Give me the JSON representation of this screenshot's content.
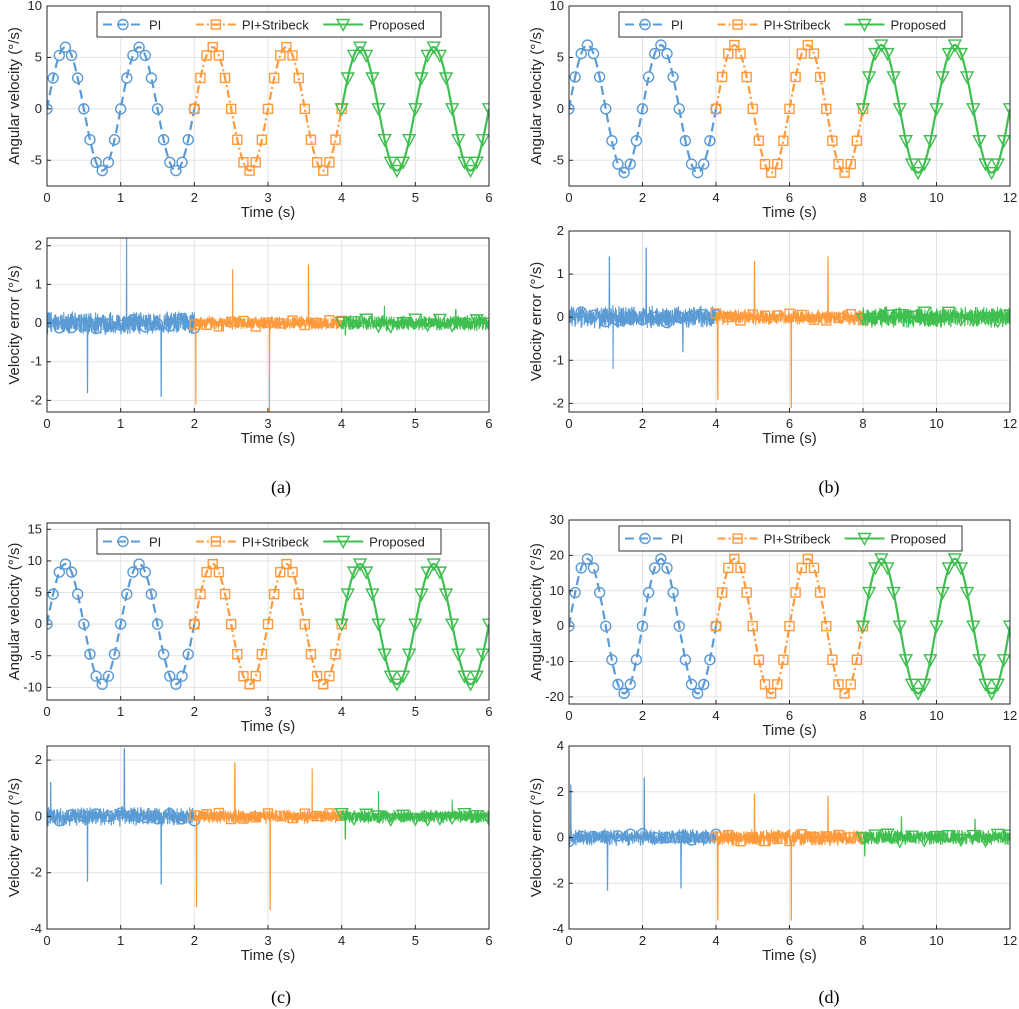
{
  "colors": {
    "pi": "#5b9bd5",
    "pi_stribeck": "#ff9a3c",
    "proposed": "#3fbf4f",
    "grid": "#e3e3e3",
    "axis": "#262626"
  },
  "legend": [
    "PI",
    "PI+Stribeck",
    "Proposed"
  ],
  "chart_data": [
    {
      "type": "line",
      "caption": "(a)",
      "speed": {
        "xlabel": "Time (s)",
        "ylabel": "Angular velocity (°/s)",
        "xlim": [
          0,
          6
        ],
        "ylim": [
          -7.5,
          10
        ],
        "xticks": [
          0,
          1,
          2,
          3,
          4,
          5,
          6
        ],
        "yticks": [
          -5,
          0,
          5,
          10
        ],
        "amplitude": 6,
        "period": 1
      },
      "error": {
        "xlabel": "Time (s)",
        "ylabel": "Velocity error (°/s)",
        "xlim": [
          0,
          6
        ],
        "ylim": [
          -2.3,
          2.2
        ],
        "xticks": [
          0,
          1,
          2,
          3,
          4,
          5,
          6
        ],
        "yticks": [
          -2,
          -1,
          0,
          1,
          2
        ],
        "noise": [
          0.25,
          0.15,
          0.17
        ],
        "spikes": [
          [
            0.55,
            -1.8
          ],
          [
            1.08,
            2.2
          ],
          [
            1.55,
            -1.9
          ],
          [
            2.02,
            -2.1
          ],
          [
            2.52,
            1.4
          ],
          [
            3.02,
            -2.3
          ],
          [
            3.55,
            1.5
          ],
          [
            4.05,
            -0.3
          ],
          [
            4.58,
            0.45
          ],
          [
            5.55,
            0.35
          ]
        ]
      },
      "series": [
        {
          "name": "PI",
          "t": [
            0,
            2
          ]
        },
        {
          "name": "PI+Stribeck",
          "t": [
            2,
            4
          ]
        },
        {
          "name": "Proposed",
          "t": [
            4,
            6
          ]
        }
      ]
    },
    {
      "type": "line",
      "caption": "(b)",
      "speed": {
        "xlabel": "Time (s)",
        "ylabel": "Angular velocity (°/s)",
        "xlim": [
          0,
          12
        ],
        "ylim": [
          -7.5,
          10
        ],
        "xticks": [
          0,
          2,
          4,
          6,
          8,
          10,
          12
        ],
        "yticks": [
          -5,
          0,
          5,
          10
        ],
        "amplitude": 6.2,
        "period": 2
      },
      "error": {
        "xlabel": "Time (s)",
        "ylabel": "Velocity error (°/s)",
        "xlim": [
          0,
          12
        ],
        "ylim": [
          -2.2,
          2
        ],
        "xticks": [
          0,
          2,
          4,
          6,
          8,
          10,
          12
        ],
        "yticks": [
          -2,
          -1,
          0,
          1,
          2
        ],
        "noise": [
          0.22,
          0.15,
          0.2
        ],
        "spikes": [
          [
            1.1,
            1.4
          ],
          [
            1.2,
            -1.2
          ],
          [
            2.1,
            1.6
          ],
          [
            3.1,
            -0.8
          ],
          [
            4.05,
            -1.9
          ],
          [
            5.05,
            1.3
          ],
          [
            6.05,
            -2.1
          ],
          [
            7.05,
            1.4
          ]
        ]
      },
      "series": [
        {
          "name": "PI",
          "t": [
            0,
            4
          ]
        },
        {
          "name": "PI+Stribeck",
          "t": [
            4,
            8
          ]
        },
        {
          "name": "Proposed",
          "t": [
            8,
            12
          ]
        }
      ]
    },
    {
      "type": "line",
      "caption": "(c)",
      "speed": {
        "xlabel": "Time (s)",
        "ylabel": "Angular velocity (°/s)",
        "xlim": [
          0,
          6
        ],
        "ylim": [
          -12,
          16
        ],
        "xticks": [
          0,
          1,
          2,
          3,
          4,
          5,
          6
        ],
        "yticks": [
          -10,
          -5,
          0,
          5,
          10,
          15
        ],
        "amplitude": 9.5,
        "period": 1
      },
      "error": {
        "xlabel": "Time (s)",
        "ylabel": "Velocity error (°/s)",
        "xlim": [
          0,
          6
        ],
        "ylim": [
          -4,
          2.5
        ],
        "xticks": [
          0,
          1,
          2,
          3,
          4,
          5,
          6
        ],
        "yticks": [
          -4,
          -2,
          0,
          2
        ],
        "noise": [
          0.28,
          0.2,
          0.2
        ],
        "spikes": [
          [
            0.05,
            1.2
          ],
          [
            0.55,
            -2.3
          ],
          [
            1.05,
            2.4
          ],
          [
            1.55,
            -2.4
          ],
          [
            2.03,
            -3.2
          ],
          [
            2.55,
            1.9
          ],
          [
            3.03,
            -3.3
          ],
          [
            3.6,
            1.7
          ],
          [
            4.05,
            -0.8
          ],
          [
            4.5,
            0.9
          ],
          [
            5.5,
            0.6
          ]
        ]
      },
      "series": [
        {
          "name": "PI",
          "t": [
            0,
            2
          ]
        },
        {
          "name": "PI+Stribeck",
          "t": [
            2,
            4
          ]
        },
        {
          "name": "Proposed",
          "t": [
            4,
            6
          ]
        }
      ]
    },
    {
      "type": "line",
      "caption": "(d)",
      "speed": {
        "xlabel": "Time (s)",
        "ylabel": "Angular velocity (°/s)",
        "xlim": [
          0,
          12
        ],
        "ylim": [
          -22,
          30
        ],
        "xticks": [
          0,
          2,
          4,
          6,
          8,
          10,
          12
        ],
        "yticks": [
          -20,
          -10,
          0,
          10,
          20,
          30
        ],
        "amplitude": 19,
        "period": 2
      },
      "error": {
        "xlabel": "Time (s)",
        "ylabel": "Velocity error (°/s)",
        "xlim": [
          0,
          12
        ],
        "ylim": [
          -4,
          4
        ],
        "xticks": [
          0,
          2,
          4,
          6,
          8,
          10,
          12
        ],
        "yticks": [
          -4,
          -2,
          0,
          2,
          4
        ],
        "noise": [
          0.3,
          0.3,
          0.28
        ],
        "spikes": [
          [
            0.05,
            2.3
          ],
          [
            1.05,
            -2.3
          ],
          [
            2.05,
            2.6
          ],
          [
            3.05,
            -2.2
          ],
          [
            4.05,
            -3.6
          ],
          [
            5.05,
            1.9
          ],
          [
            6.05,
            -3.6
          ],
          [
            7.05,
            1.8
          ],
          [
            8.05,
            -0.8
          ],
          [
            9.05,
            0.9
          ],
          [
            11.05,
            0.8
          ]
        ]
      },
      "series": [
        {
          "name": "PI",
          "t": [
            0,
            4
          ]
        },
        {
          "name": "PI+Stribeck",
          "t": [
            4,
            8
          ]
        },
        {
          "name": "Proposed",
          "t": [
            8,
            12
          ]
        }
      ]
    }
  ]
}
